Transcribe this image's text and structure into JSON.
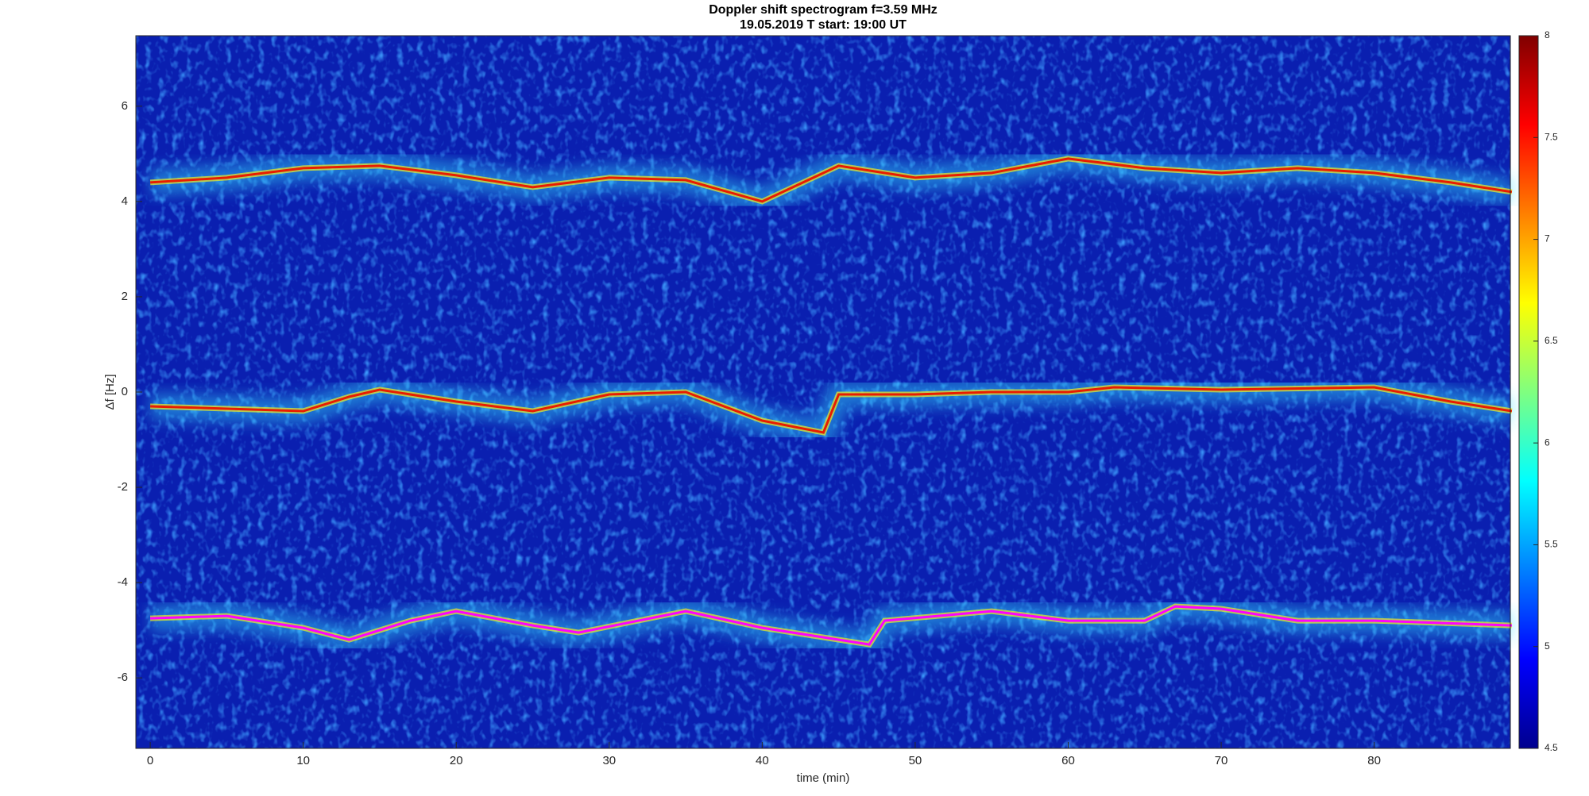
{
  "chart_data": {
    "type": "spectrogram",
    "title": "Doppler shift spectrogram f=3.59 MHz",
    "subtitle": "19.05.2019    T start: 19:00 UT",
    "x_label": "time (min)",
    "y_label": "Δf [Hz]",
    "xlim": [
      -0.94,
      88.9
    ],
    "xticks": [
      0,
      10,
      20,
      30,
      40,
      50,
      60,
      70,
      80
    ],
    "ylim": [
      -7.48,
      7.48
    ],
    "yticks": [
      -6,
      -4,
      -2,
      0,
      2,
      4,
      6
    ],
    "colorbar_lim": [
      4.5,
      8
    ],
    "colorbar_ticks": [
      4.5,
      5,
      5.5,
      6,
      6.5,
      7,
      7.5,
      8
    ],
    "series": [
      {
        "color": "#e81c00",
        "x": [
          0,
          5,
          10,
          15,
          20,
          25,
          30,
          35,
          40,
          42,
          45,
          50,
          55,
          60,
          65,
          70,
          75,
          80,
          85,
          89
        ],
        "values": [
          4.4,
          4.5,
          4.7,
          4.75,
          4.55,
          4.3,
          4.5,
          4.45,
          4.0,
          4.3,
          4.75,
          4.5,
          4.6,
          4.9,
          4.7,
          4.6,
          4.7,
          4.6,
          4.4,
          4.2
        ]
      },
      {
        "color": "#e81c00",
        "x": [
          0,
          5,
          10,
          13,
          15,
          20,
          25,
          30,
          35,
          40,
          44,
          45,
          50,
          55,
          60,
          63,
          70,
          80,
          85,
          89
        ],
        "values": [
          -0.3,
          -0.35,
          -0.4,
          -0.1,
          0.05,
          -0.2,
          -0.4,
          -0.05,
          0,
          -0.6,
          -0.85,
          -0.05,
          -0.05,
          0,
          0,
          0.1,
          0.05,
          0.1,
          -0.2,
          -0.4
        ]
      },
      {
        "color": "#ff00ff",
        "x": [
          0,
          5,
          10,
          13,
          17,
          20,
          25,
          28,
          35,
          40,
          47,
          48,
          55,
          60,
          65,
          67,
          70,
          75,
          80,
          89
        ],
        "values": [
          -4.75,
          -4.7,
          -4.95,
          -5.2,
          -4.8,
          -4.6,
          -4.9,
          -5.05,
          -4.6,
          -4.95,
          -5.3,
          -4.8,
          -4.6,
          -4.8,
          -4.8,
          -4.5,
          -4.55,
          -4.8,
          -4.8,
          -4.9
        ]
      }
    ]
  }
}
